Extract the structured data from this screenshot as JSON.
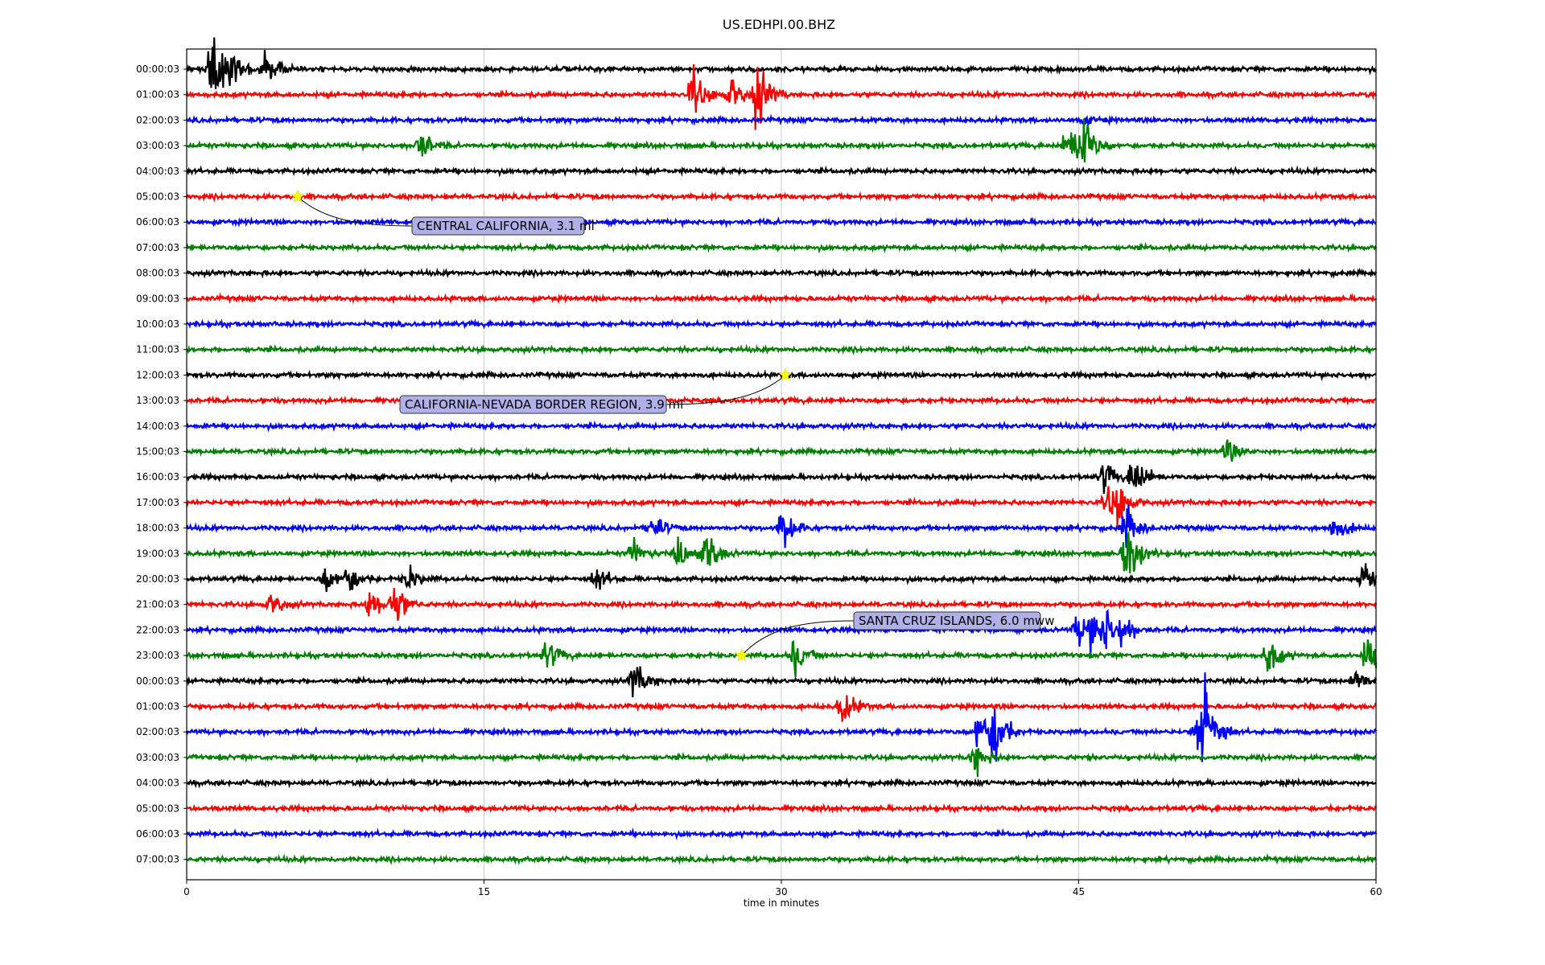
{
  "chart_data": {
    "type": "line",
    "title": "US.EDHPI.00.BHZ",
    "xlabel": "time in minutes",
    "ylabel": "",
    "xlim": [
      0,
      60
    ],
    "x_ticks": [
      "0",
      "15",
      "30",
      "45",
      "60"
    ],
    "x_tick_values": [
      0,
      15,
      30,
      45,
      60
    ],
    "grid": "vertical",
    "colors": [
      "#000000",
      "#ff0000",
      "#0000ff",
      "#008000"
    ],
    "rows": [
      {
        "label": "00:00:03",
        "bursts": [
          [
            1.3,
            1.5
          ],
          [
            2.0,
            0.9
          ],
          [
            4.0,
            1.0
          ]
        ]
      },
      {
        "label": "01:00:03",
        "bursts": [
          [
            25.6,
            1.0
          ],
          [
            27.5,
            0.8
          ],
          [
            28.8,
            1.4
          ]
        ]
      },
      {
        "label": "02:00:03",
        "bursts": [
          [
            45.2,
            0.2
          ]
        ]
      },
      {
        "label": "03:00:03",
        "bursts": [
          [
            11.8,
            0.7
          ],
          [
            44.5,
            0.8
          ],
          [
            45.2,
            1.5
          ]
        ]
      },
      {
        "label": "04:00:03",
        "bursts": []
      },
      {
        "label": "05:00:03",
        "bursts": []
      },
      {
        "label": "06:00:03",
        "bursts": []
      },
      {
        "label": "07:00:03",
        "bursts": []
      },
      {
        "label": "08:00:03",
        "bursts": []
      },
      {
        "label": "09:00:03",
        "bursts": []
      },
      {
        "label": "10:00:03",
        "bursts": []
      },
      {
        "label": "11:00:03",
        "bursts": []
      },
      {
        "label": "12:00:03",
        "bursts": []
      },
      {
        "label": "13:00:03",
        "bursts": []
      },
      {
        "label": "14:00:03",
        "bursts": []
      },
      {
        "label": "15:00:03",
        "bursts": [
          [
            52.5,
            0.5
          ]
        ]
      },
      {
        "label": "16:00:03",
        "bursts": [
          [
            46.3,
            0.6
          ],
          [
            47.8,
            1.0
          ]
        ]
      },
      {
        "label": "17:00:03",
        "bursts": [
          [
            46.5,
            0.6
          ],
          [
            47.0,
            0.7
          ]
        ]
      },
      {
        "label": "18:00:03",
        "bursts": [
          [
            23.5,
            0.6
          ],
          [
            30.1,
            0.9
          ],
          [
            47.4,
            0.9
          ],
          [
            57.9,
            0.6
          ]
        ]
      },
      {
        "label": "19:00:03",
        "bursts": [
          [
            22.5,
            0.6
          ],
          [
            24.9,
            0.8
          ],
          [
            26.3,
            0.9
          ],
          [
            47.5,
            1.6
          ]
        ]
      },
      {
        "label": "20:00:03",
        "bursts": [
          [
            7.0,
            0.6
          ],
          [
            8.2,
            0.6
          ],
          [
            11.2,
            0.5
          ],
          [
            20.7,
            0.5
          ],
          [
            59.4,
            0.8
          ]
        ]
      },
      {
        "label": "21:00:03",
        "bursts": [
          [
            4.3,
            0.5
          ],
          [
            9.3,
            0.7
          ],
          [
            10.5,
            0.9
          ]
        ]
      },
      {
        "label": "22:00:03",
        "bursts": [
          [
            45.0,
            0.7
          ],
          [
            45.7,
            0.7
          ],
          [
            46.4,
            0.8
          ],
          [
            47.2,
            0.6
          ]
        ]
      },
      {
        "label": "23:00:03",
        "bursts": [
          [
            18.2,
            0.6
          ],
          [
            30.7,
            0.8
          ],
          [
            54.6,
            0.8
          ],
          [
            59.6,
            0.9
          ]
        ]
      },
      {
        "label": "00:00:03",
        "bursts": [
          [
            22.6,
            0.8
          ],
          [
            59.0,
            0.6
          ]
        ]
      },
      {
        "label": "01:00:03",
        "bursts": [
          [
            33.1,
            0.8
          ]
        ]
      },
      {
        "label": "02:00:03",
        "bursts": [
          [
            40.0,
            1.0
          ],
          [
            40.8,
            1.4
          ],
          [
            51.1,
            1.5
          ],
          [
            51.4,
            1.6
          ]
        ]
      },
      {
        "label": "03:00:03",
        "bursts": [
          [
            39.8,
            0.6
          ]
        ]
      },
      {
        "label": "04:00:03",
        "bursts": []
      },
      {
        "label": "05:00:03",
        "bursts": []
      },
      {
        "label": "06:00:03",
        "bursts": []
      },
      {
        "label": "07:00:03",
        "bursts": []
      }
    ],
    "events": [
      {
        "label": "CENTRAL CALIFORNIA, 3.1 ml",
        "row": 5,
        "t": 5.6
      },
      {
        "label": "CALIFORNIA-NEVADA BORDER REGION, 3.9 ml",
        "row": 12,
        "t": 30.2
      },
      {
        "label": "SANTA CRUZ ISLANDS, 6.0 mww",
        "row": 23,
        "t": 28.0
      }
    ],
    "event_marker_color": "#ffff00",
    "annotation_box_color": "#b0b0e8"
  }
}
